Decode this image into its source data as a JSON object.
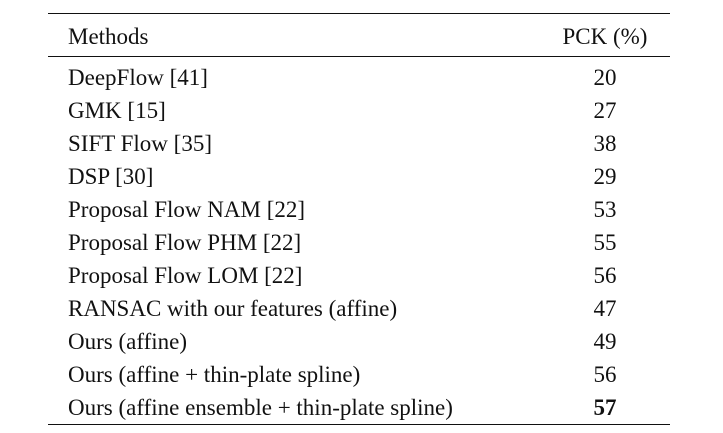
{
  "table": {
    "headers": {
      "method": "Methods",
      "value": "PCK (%)"
    },
    "rows": [
      {
        "method": "DeepFlow [41]",
        "value": "20",
        "bold": false
      },
      {
        "method": "GMK [15]",
        "value": "27",
        "bold": false
      },
      {
        "method": "SIFT Flow [35]",
        "value": "38",
        "bold": false
      },
      {
        "method": "DSP [30]",
        "value": "29",
        "bold": false
      },
      {
        "method": "Proposal Flow NAM [22]",
        "value": "53",
        "bold": false
      },
      {
        "method": "Proposal Flow PHM [22]",
        "value": "55",
        "bold": false
      },
      {
        "method": "Proposal Flow LOM [22]",
        "value": "56",
        "bold": false
      },
      {
        "method": "RANSAC with our features (affine)",
        "value": "47",
        "bold": false
      },
      {
        "method": "Ours (affine)",
        "value": "49",
        "bold": false
      },
      {
        "method": "Ours (affine + thin-plate spline)",
        "value": "56",
        "bold": false
      },
      {
        "method": "Ours (affine ensemble + thin-plate spline)",
        "value": "57",
        "bold": true
      }
    ]
  }
}
